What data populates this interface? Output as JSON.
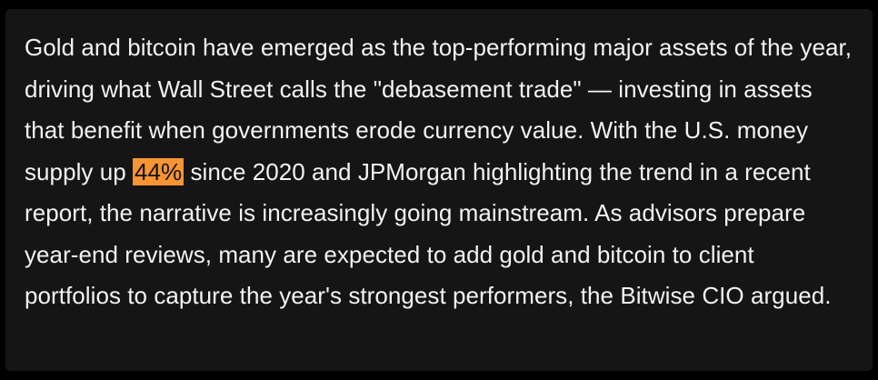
{
  "article": {
    "paragraph_before": "Gold and bitcoin have emerged as the top-performing major assets of the year, driving what Wall Street calls the \"debasement trade\" — investing in assets that benefit when governments erode currency value. With the U.S. money supply up ",
    "highlight": "44%",
    "paragraph_after": " since 2020 and JPMorgan highlighting the trend in a recent report, the narrative is increasingly going mainstream. As advisors prepare year-end reviews, many are expected to add gold and bitcoin to client portfolios to capture the year's strongest performers, the Bitwise CIO argued."
  },
  "colors": {
    "page_background": "#000000",
    "card_background": "#151515",
    "text": "#f2f2f2",
    "highlight_background": "#f79433"
  }
}
